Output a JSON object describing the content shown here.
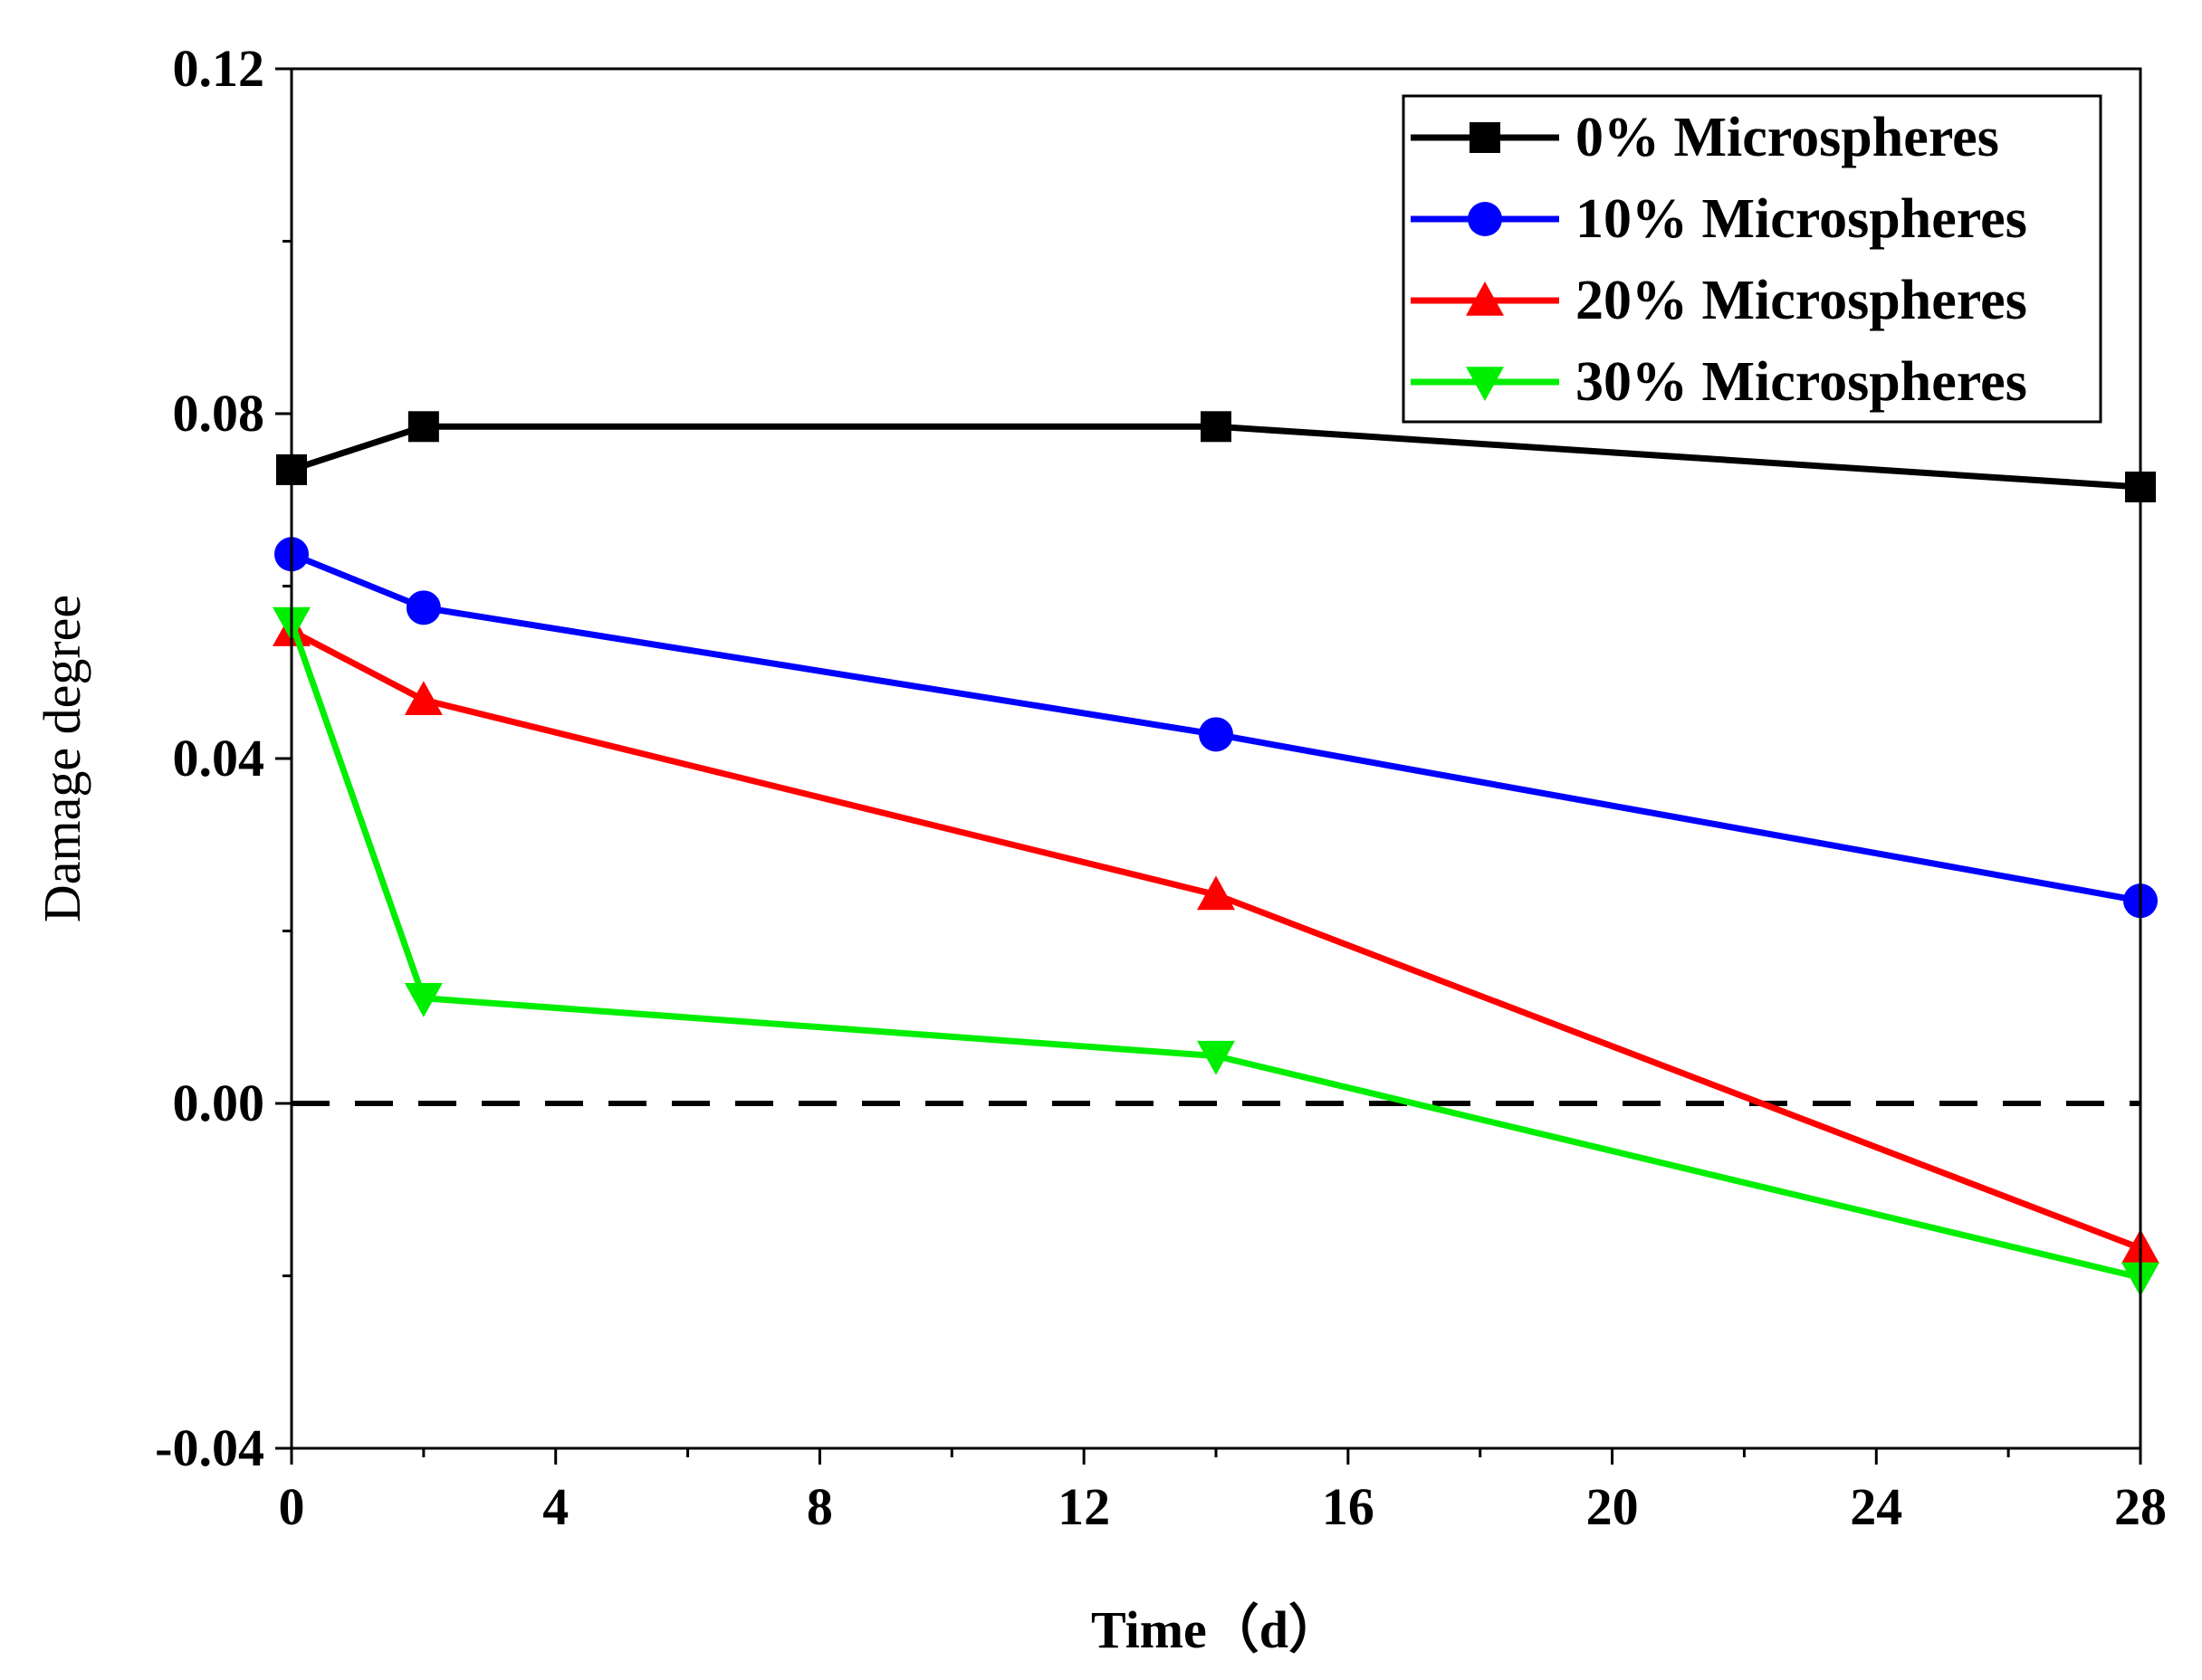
{
  "chart_data": {
    "type": "line",
    "title": "",
    "xlabel": "Time（d）",
    "ylabel": "Damage degree",
    "xlim": [
      0,
      28
    ],
    "ylim": [
      -0.04,
      0.12
    ],
    "xticks": [
      0,
      4,
      8,
      12,
      16,
      20,
      24,
      28
    ],
    "xtick_labels": [
      "0",
      "4",
      "8",
      "12",
      "16",
      "20",
      "24",
      "28"
    ],
    "yticks": [
      -0.04,
      0.0,
      0.04,
      0.08,
      0.12
    ],
    "ytick_labels": [
      "-0.04",
      "0.00",
      "0.04",
      "0.08",
      "0.12"
    ],
    "grid": false,
    "legend_position": "top-right",
    "reference_line": {
      "y": 0.0,
      "style": "dashed",
      "color": "#000000"
    },
    "x": [
      0,
      2,
      14,
      28
    ],
    "series": [
      {
        "name": "0% Microspheres",
        "values": [
          0.0735,
          0.0785,
          0.0785,
          0.0715
        ],
        "color": "#000000",
        "marker": "square"
      },
      {
        "name": "10% Microspheres",
        "values": [
          0.0637,
          0.0575,
          0.0428,
          0.0235
        ],
        "color": "#0000ff",
        "marker": "circle"
      },
      {
        "name": "20% Microspheres",
        "values": [
          0.0548,
          0.0468,
          0.0242,
          -0.0168
        ],
        "color": "#ff0000",
        "marker": "triangle-up"
      },
      {
        "name": "30% Microspheres",
        "values": [
          0.0558,
          0.0122,
          0.0055,
          -0.0202
        ],
        "color": "#00ee00",
        "marker": "triangle-down"
      }
    ]
  }
}
